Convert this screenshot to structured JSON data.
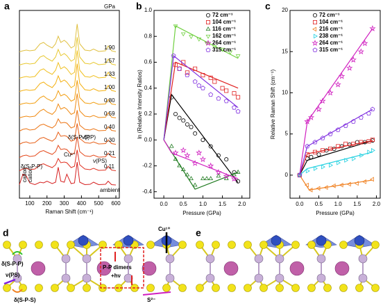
{
  "chart_data": [
    {
      "panel": "a",
      "type": "line",
      "x_label": "Raman Shift (cm⁻¹)",
      "unit": "GPa",
      "x": [
        40,
        60,
        80,
        100,
        130,
        160,
        180,
        200,
        230,
        250,
        265,
        280,
        300,
        315,
        340,
        360,
        375,
        390,
        420,
        450,
        470,
        500,
        540,
        555,
        575,
        600
      ],
      "xlim": [
        40,
        620
      ],
      "xticks": [
        100,
        200,
        300,
        400,
        500,
        600
      ],
      "series": [
        {
          "name": "ambient",
          "color": "#d62020",
          "values": [
            0.05,
            0.35,
            0.3,
            0.1,
            0.05,
            0.12,
            0.1,
            0.15,
            0.08,
            0.12,
            0.55,
            0.15,
            0.12,
            0.35,
            0.08,
            0.1,
            0.7,
            0.12,
            0.05,
            0.06,
            0.12,
            0.05,
            0.06,
            0.15,
            0.05,
            0.04
          ]
        },
        {
          "name": "0.11",
          "color": "#e03020",
          "values": [
            0.05,
            0.1,
            0.12,
            0.08,
            0.1,
            0.22,
            0.25,
            0.2,
            0.14,
            0.22,
            0.4,
            0.28,
            0.3,
            0.28,
            0.14,
            0.18,
            0.65,
            0.22,
            0.1,
            0.08,
            0.12,
            0.06,
            0.07,
            0.18,
            0.07,
            0.05
          ]
        },
        {
          "name": "0.21",
          "color": "#e44a1c",
          "values": [
            0.05,
            0.1,
            0.12,
            0.08,
            0.1,
            0.22,
            0.25,
            0.2,
            0.14,
            0.22,
            0.4,
            0.28,
            0.3,
            0.28,
            0.14,
            0.18,
            0.65,
            0.22,
            0.1,
            0.08,
            0.12,
            0.06,
            0.07,
            0.18,
            0.07,
            0.05
          ]
        },
        {
          "name": "0.30",
          "color": "#e86018",
          "values": [
            0.05,
            0.1,
            0.12,
            0.08,
            0.1,
            0.22,
            0.25,
            0.2,
            0.14,
            0.22,
            0.4,
            0.28,
            0.3,
            0.28,
            0.14,
            0.18,
            0.65,
            0.22,
            0.1,
            0.08,
            0.12,
            0.06,
            0.07,
            0.18,
            0.07,
            0.05
          ]
        },
        {
          "name": "0.40",
          "color": "#ec7414",
          "values": [
            0.05,
            0.1,
            0.12,
            0.08,
            0.1,
            0.22,
            0.25,
            0.2,
            0.14,
            0.22,
            0.4,
            0.28,
            0.3,
            0.28,
            0.14,
            0.18,
            0.65,
            0.22,
            0.1,
            0.08,
            0.12,
            0.06,
            0.07,
            0.18,
            0.07,
            0.05
          ]
        },
        {
          "name": "0.59",
          "color": "#f08a12",
          "values": [
            0.05,
            0.08,
            0.1,
            0.08,
            0.1,
            0.25,
            0.3,
            0.22,
            0.15,
            0.25,
            0.45,
            0.3,
            0.35,
            0.3,
            0.15,
            0.2,
            0.75,
            0.25,
            0.1,
            0.08,
            0.12,
            0.06,
            0.07,
            0.2,
            0.07,
            0.05
          ]
        },
        {
          "name": "0.80",
          "color": "#f29e10",
          "values": [
            0.05,
            0.08,
            0.1,
            0.08,
            0.1,
            0.25,
            0.3,
            0.22,
            0.15,
            0.25,
            0.45,
            0.3,
            0.35,
            0.3,
            0.15,
            0.2,
            0.75,
            0.25,
            0.1,
            0.08,
            0.12,
            0.06,
            0.07,
            0.2,
            0.07,
            0.05
          ]
        },
        {
          "name": "1.00",
          "color": "#f4b010",
          "values": [
            0.05,
            0.08,
            0.1,
            0.08,
            0.1,
            0.28,
            0.32,
            0.24,
            0.16,
            0.28,
            0.5,
            0.32,
            0.38,
            0.32,
            0.16,
            0.22,
            0.85,
            0.28,
            0.1,
            0.08,
            0.13,
            0.06,
            0.08,
            0.22,
            0.08,
            0.05
          ]
        },
        {
          "name": "1.33",
          "color": "#f0c020",
          "values": [
            0.05,
            0.08,
            0.1,
            0.08,
            0.1,
            0.28,
            0.32,
            0.24,
            0.16,
            0.28,
            0.5,
            0.32,
            0.38,
            0.32,
            0.16,
            0.22,
            0.85,
            0.28,
            0.1,
            0.08,
            0.13,
            0.06,
            0.08,
            0.22,
            0.08,
            0.05
          ]
        },
        {
          "name": "1.57",
          "color": "#e8c830",
          "values": [
            0.05,
            0.08,
            0.1,
            0.08,
            0.1,
            0.28,
            0.32,
            0.24,
            0.16,
            0.28,
            0.5,
            0.32,
            0.38,
            0.32,
            0.16,
            0.22,
            0.85,
            0.28,
            0.1,
            0.08,
            0.13,
            0.06,
            0.08,
            0.22,
            0.08,
            0.05
          ]
        },
        {
          "name": "1.90",
          "color": "#e0c040",
          "values": [
            0.05,
            0.08,
            0.1,
            0.08,
            0.1,
            0.28,
            0.32,
            0.24,
            0.16,
            0.28,
            0.5,
            0.32,
            0.38,
            0.32,
            0.16,
            0.22,
            0.85,
            0.28,
            0.1,
            0.08,
            0.13,
            0.06,
            0.08,
            0.22,
            0.08,
            0.05
          ]
        }
      ],
      "annotations": [
        "cation",
        "cation",
        "δ(S-P-P)",
        "δ(S-P-S)",
        "Cu¹⁺",
        "ν(PP)",
        "ν(PS)"
      ]
    },
    {
      "panel": "b",
      "type": "scatter",
      "x_label": "Pressure (GPa)",
      "y_label": "ln (Relative Intensity Ratios)",
      "xlim": [
        -0.25,
        2.2
      ],
      "xticks": [
        {
          "value": 0,
          "label": "0.0"
        },
        0.5,
        {
          "value": 1,
          "label": "1.0"
        },
        1.5,
        {
          "value": 2,
          "label": "2.0"
        }
      ],
      "ylim": [
        -0.45,
        1.0
      ],
      "yticks": [
        -0.4,
        -0.2,
        {
          "value": 0,
          "label": "0.0"
        },
        0.2,
        0.4,
        0.6,
        0.8,
        {
          "value": 1,
          "label": "1.0"
        }
      ],
      "series": [
        {
          "name": "72 cm⁻¹",
          "color": "#000000",
          "marker": "circle",
          "x": [
            0.2,
            0.3,
            0.4,
            0.5,
            0.6,
            0.7,
            0.8,
            1.0,
            1.2,
            1.4,
            1.6,
            1.8,
            1.9
          ],
          "values": [
            0.33,
            0.2,
            0.17,
            0.15,
            0.12,
            0.1,
            0.05,
            0.0,
            -0.05,
            -0.12,
            -0.15,
            -0.25,
            -0.32
          ],
          "fit_x": [
            0,
            0.2,
            1.9
          ],
          "fit_values": [
            0,
            0.35,
            -0.33
          ]
        },
        {
          "name": "104 cm⁻¹",
          "color": "#e02020",
          "marker": "square",
          "x": [
            0.3,
            0.4,
            0.5,
            0.6,
            0.8,
            1.0,
            1.2,
            1.3,
            1.5,
            1.6,
            1.8,
            1.9
          ],
          "values": [
            0.58,
            0.55,
            0.6,
            0.52,
            0.55,
            0.5,
            0.48,
            0.45,
            0.4,
            0.38,
            0.36,
            0.33
          ],
          "fit_x": [
            0,
            0.3,
            1.9
          ],
          "fit_values": [
            0,
            0.6,
            0.4
          ]
        },
        {
          "name": "116 cm⁻¹",
          "color": "#1e7a1e",
          "marker": "tri-up",
          "x": [
            0.2,
            0.3,
            0.4,
            0.5,
            0.6,
            0.7,
            0.8,
            1.0,
            1.1,
            1.2,
            1.4,
            1.6,
            1.8,
            1.9
          ],
          "values": [
            -0.05,
            -0.15,
            -0.2,
            -0.23,
            -0.27,
            -0.3,
            -0.35,
            -0.3,
            -0.3,
            -0.3,
            -0.28,
            -0.3,
            -0.27,
            -0.25
          ],
          "fit_x": [
            0,
            0.8,
            1.9
          ],
          "fit_values": [
            0,
            -0.38,
            -0.25
          ]
        },
        {
          "name": "162 cm⁻¹",
          "color": "#70d040",
          "marker": "tri-down",
          "x": [
            0.3,
            0.5,
            0.7,
            0.9,
            1.1,
            1.3,
            1.5,
            1.7,
            1.9
          ],
          "values": [
            0.88,
            0.82,
            0.8,
            0.78,
            0.75,
            0.72,
            0.7,
            0.68,
            0.65
          ],
          "fit_x": [
            0,
            0.3,
            1.9
          ],
          "fit_values": [
            0,
            0.88,
            0.63
          ]
        },
        {
          "name": "264 cm⁻¹",
          "color": "#d020c0",
          "marker": "star",
          "x": [
            0.3,
            0.5,
            0.6,
            0.8,
            0.9,
            1.0,
            1.2,
            1.4,
            1.6,
            1.8
          ],
          "values": [
            -0.1,
            -0.08,
            -0.12,
            -0.18,
            -0.1,
            -0.15,
            -0.2,
            -0.25,
            -0.28,
            -0.3
          ],
          "fit_x": [
            0,
            0.2,
            1.9
          ],
          "fit_values": [
            0,
            -0.1,
            -0.3
          ]
        },
        {
          "name": "315 cm⁻¹",
          "color": "#8030e0",
          "marker": "pentagon",
          "x": [
            0.25,
            0.4,
            0.6,
            0.8,
            0.9,
            1.0,
            1.2,
            1.4,
            1.6,
            1.8,
            1.9
          ],
          "values": [
            0.65,
            0.55,
            0.5,
            0.45,
            0.42,
            0.4,
            0.35,
            0.32,
            0.3,
            0.25,
            0.22
          ],
          "fit_x": [
            0,
            0.25,
            1.9
          ],
          "fit_values": [
            0,
            0.65,
            0.25
          ]
        }
      ]
    },
    {
      "panel": "c",
      "type": "scatter",
      "x_label": "Pressure (GPa)",
      "y_label": "Relative Raman Shift (cm⁻¹)",
      "xlim": [
        -0.25,
        2.1
      ],
      "xticks": [
        {
          "value": 0,
          "label": "0.0"
        },
        0.5,
        {
          "value": 1,
          "label": "1.0"
        },
        1.5,
        {
          "value": 2,
          "label": "2.0"
        }
      ],
      "ylim": [
        -2.8,
        20
      ],
      "yticks": [
        0,
        5,
        10,
        15,
        20
      ],
      "series": [
        {
          "name": "72 cm⁻¹",
          "color": "#000000",
          "marker": "circle",
          "x": [
            0,
            0.2,
            0.3,
            0.5,
            0.7,
            0.9,
            1.1,
            1.3,
            1.5,
            1.7,
            1.9
          ],
          "values": [
            0,
            2,
            2.2,
            2.5,
            3,
            3.2,
            3.5,
            3.7,
            4,
            4,
            4.2
          ],
          "fit_x": [
            0,
            0.2,
            1.9
          ],
          "fit_values": [
            0,
            1.8,
            4.2
          ]
        },
        {
          "name": "104 cm⁻¹",
          "color": "#e02020",
          "marker": "square",
          "x": [
            0,
            0.2,
            0.4,
            0.6,
            0.8,
            1.0,
            1.2,
            1.4,
            1.6,
            1.8,
            1.9
          ],
          "values": [
            0,
            2.5,
            2.8,
            3,
            3.2,
            3.5,
            3.8,
            3.8,
            4,
            4.1,
            4.3
          ],
          "fit_x": [
            0,
            0.2,
            1.9
          ],
          "fit_values": [
            0,
            2.6,
            4.2
          ]
        },
        {
          "name": "216 cm⁻¹",
          "color": "#f08020",
          "marker": "tri-left",
          "x": [
            0,
            0.2,
            0.3,
            0.5,
            0.7,
            0.9,
            1.1,
            1.3,
            1.5,
            1.7,
            1.9
          ],
          "values": [
            0,
            -1.2,
            -1.8,
            -1.6,
            -1.5,
            -1.3,
            -1.2,
            -1.1,
            -1,
            -0.8,
            -0.5
          ],
          "fit_x": [
            0,
            0.25,
            1.9
          ],
          "fit_values": [
            0,
            -1.8,
            -0.6
          ]
        },
        {
          "name": "238 cm⁻¹",
          "color": "#20d0e0",
          "marker": "tri-right",
          "x": [
            0,
            0.2,
            0.4,
            0.6,
            0.8,
            1.0,
            1.2,
            1.4,
            1.6,
            1.8,
            1.9
          ],
          "values": [
            0,
            0.5,
            0.8,
            1,
            1.2,
            1.5,
            1.8,
            2,
            2.4,
            2.8,
            3
          ],
          "fit_x": [
            0,
            0.2,
            1.9
          ],
          "fit_values": [
            0,
            0.8,
            2.8
          ]
        },
        {
          "name": "264 cm⁻¹",
          "color": "#d020c0",
          "marker": "star",
          "x": [
            0.2,
            0.3,
            0.5,
            0.6,
            0.8,
            1.0,
            1.1,
            1.3,
            1.4,
            1.6,
            1.7,
            1.9
          ],
          "values": [
            6.5,
            7,
            8,
            9,
            10,
            11,
            12,
            13,
            14,
            15,
            16,
            17.8
          ],
          "fit_x": [
            0,
            0.2,
            1.9
          ],
          "fit_values": [
            0,
            6.5,
            17.8
          ]
        },
        {
          "name": "315 cm⁻¹",
          "color": "#8030e0",
          "marker": "pentagon",
          "x": [
            0,
            0.2,
            0.4,
            0.6,
            0.8,
            1.0,
            1.2,
            1.4,
            1.6,
            1.8,
            1.9
          ],
          "values": [
            0,
            3.5,
            4,
            4.5,
            5,
            5.5,
            6,
            6.5,
            7,
            7.5,
            8
          ],
          "fit_x": [
            0,
            0.2,
            1.9
          ],
          "fit_values": [
            0,
            3.5,
            8
          ]
        }
      ]
    }
  ],
  "structures": [
    {
      "panel": "d",
      "labels": [
        "Cu¹⁺",
        "δ(S-P-P)",
        "ν(PS)",
        "δ(S-P-S)",
        "P-P dimers",
        "+hν",
        "S²⁻"
      ]
    },
    {
      "panel": "e"
    }
  ]
}
